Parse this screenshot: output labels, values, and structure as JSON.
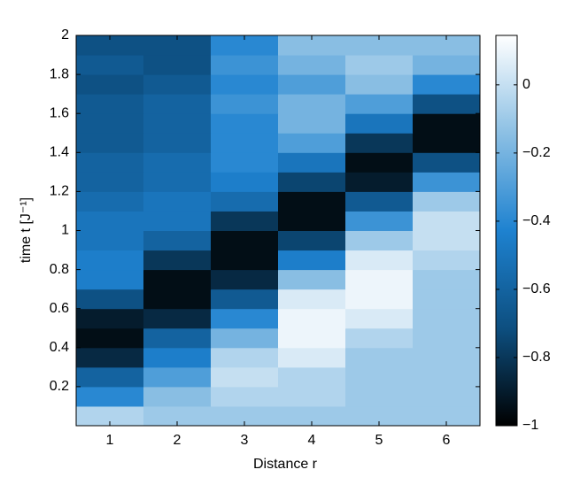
{
  "chart_data": {
    "type": "heatmap",
    "xlabel": "Distance r",
    "ylabel": "time t [J⁻¹]",
    "x": [
      1,
      2,
      3,
      4,
      5,
      6
    ],
    "y": [
      0.05,
      0.15,
      0.25,
      0.35,
      0.45,
      0.55,
      0.65,
      0.75,
      0.85,
      0.95,
      1.05,
      1.15,
      1.25,
      1.35,
      1.45,
      1.55,
      1.65,
      1.75,
      1.85,
      1.95
    ],
    "z": [
      [
        -0.05,
        -0.1,
        -0.1,
        -0.1,
        -0.1,
        -0.1
      ],
      [
        -0.4,
        -0.15,
        -0.05,
        -0.05,
        -0.1,
        -0.1
      ],
      [
        -0.6,
        -0.3,
        0,
        -0.05,
        -0.1,
        -0.1
      ],
      [
        -0.85,
        -0.45,
        -0.05,
        0.05,
        -0.1,
        -0.1
      ],
      [
        -0.95,
        -0.6,
        -0.2,
        0.1,
        -0.05,
        -0.1
      ],
      [
        -0.9,
        -0.85,
        -0.4,
        0.1,
        0.05,
        -0.1
      ],
      [
        -0.7,
        -0.95,
        -0.65,
        0.05,
        0.1,
        -0.1
      ],
      [
        -0.45,
        -0.95,
        -0.85,
        -0.15,
        0.1,
        -0.1
      ],
      [
        -0.45,
        -0.8,
        -0.95,
        -0.45,
        0.05,
        -0.05
      ],
      [
        -0.5,
        -0.6,
        -0.95,
        -0.75,
        -0.1,
        0
      ],
      [
        -0.5,
        -0.5,
        -0.8,
        -0.95,
        -0.35,
        0
      ],
      [
        -0.55,
        -0.5,
        -0.55,
        -0.95,
        -0.65,
        -0.1
      ],
      [
        -0.6,
        -0.55,
        -0.45,
        -0.75,
        -0.9,
        -0.35
      ],
      [
        -0.6,
        -0.55,
        -0.4,
        -0.5,
        -0.95,
        -0.7
      ],
      [
        -0.65,
        -0.6,
        -0.4,
        -0.3,
        -0.8,
        -0.95
      ],
      [
        -0.65,
        -0.6,
        -0.4,
        -0.2,
        -0.5,
        -0.95
      ],
      [
        -0.65,
        -0.6,
        -0.35,
        -0.2,
        -0.3,
        -0.7
      ],
      [
        -0.7,
        -0.65,
        -0.4,
        -0.3,
        -0.15,
        -0.4
      ],
      [
        -0.65,
        -0.7,
        -0.35,
        -0.2,
        -0.1,
        -0.2
      ],
      [
        -0.7,
        -0.7,
        -0.4,
        -0.15,
        -0.15,
        -0.15
      ]
    ],
    "xlim": [
      0.5,
      6.5
    ],
    "xticks": [
      1,
      2,
      3,
      4,
      5,
      6
    ],
    "ylim": [
      0,
      2
    ],
    "yticks": [
      0.2,
      0.4,
      0.6,
      0.8,
      1,
      1.2,
      1.4,
      1.6,
      1.8,
      2
    ],
    "clim": [
      -1,
      0.145
    ],
    "cticks": [
      {
        "value": -1,
        "label": "−1"
      },
      {
        "value": -0.8,
        "label": "−0.8"
      },
      {
        "value": -0.6,
        "label": "−0.6"
      },
      {
        "value": -0.4,
        "label": "−0.4"
      },
      {
        "value": -0.2,
        "label": "−0.2"
      },
      0
    ],
    "colormap": [
      "#000000",
      "#0d4f80",
      "#1e82d0",
      "#8cc0e4",
      "#ffffff"
    ]
  }
}
